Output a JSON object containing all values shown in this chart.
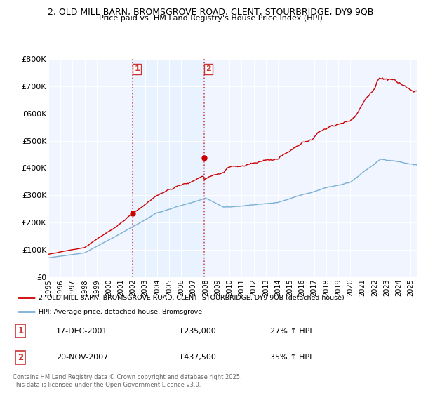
{
  "title_line1": "2, OLD MILL BARN, BROMSGROVE ROAD, CLENT, STOURBRIDGE, DY9 9QB",
  "title_line2": "Price paid vs. HM Land Registry's House Price Index (HPI)",
  "yticks": [
    0,
    100000,
    200000,
    300000,
    400000,
    500000,
    600000,
    700000,
    800000
  ],
  "ytick_labels": [
    "£0",
    "£100K",
    "£200K",
    "£300K",
    "£400K",
    "£500K",
    "£600K",
    "£700K",
    "£800K"
  ],
  "xmin": 1995,
  "xmax": 2025.5,
  "ymin": 0,
  "ymax": 800000,
  "sale1_date": "17-DEC-2001",
  "sale1_price": 235000,
  "sale1_pct": "27% ↑ HPI",
  "sale1_x": 2001.96,
  "sale2_date": "20-NOV-2007",
  "sale2_price": 437500,
  "sale2_pct": "35% ↑ HPI",
  "sale2_x": 2007.88,
  "property_color": "#cc0000",
  "hpi_color": "#7aafd4",
  "vline_color": "#cc3333",
  "span_color": "#ddeeff",
  "legend_property": "2, OLD MILL BARN, BROMSGROVE ROAD, CLENT, STOURBRIDGE, DY9 9QB (detached house)",
  "legend_hpi": "HPI: Average price, detached house, Bromsgrove",
  "footnote": "Contains HM Land Registry data © Crown copyright and database right 2025.\nThis data is licensed under the Open Government Licence v3.0.",
  "background_color": "#ffffff",
  "plot_bg_color": "#f0f5ff"
}
